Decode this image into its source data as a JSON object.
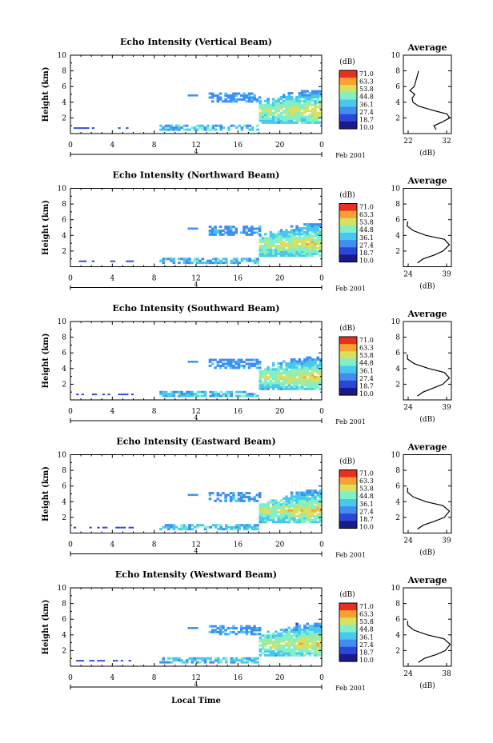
{
  "figure": {
    "xlabel": "Local Time",
    "date_label": "Feb 2001",
    "day_label": "4",
    "colorbar_unit": "(dB)",
    "colorbar_ticks": [
      "71.0",
      "63.3",
      "53.8",
      "44.8",
      "36.1",
      "27.4",
      "18.7",
      "10.0"
    ],
    "colormap": [
      "#1a1a8c",
      "#2c46d8",
      "#3f8ef0",
      "#48c8ee",
      "#7ff0c8",
      "#d8e060",
      "#f8a030",
      "#e83020"
    ],
    "empty_color": "#ffffff"
  },
  "chart_data": [
    {
      "type": "heatmap",
      "title": "Echo Intensity (Vertical Beam)",
      "xlabel": "",
      "ylabel": "Height (km)",
      "xlim": [
        0,
        24
      ],
      "ylim": [
        0,
        10
      ],
      "xticks": [
        "0",
        "4",
        "8",
        "12",
        "16",
        "20",
        "0"
      ],
      "yticks": [
        "2",
        "4",
        "6",
        "8",
        "10"
      ],
      "clim": [
        10.0,
        71.0
      ],
      "profile": {
        "title": "Average",
        "xlabel": "(dB)",
        "xlim": [
          22,
          33
        ],
        "xticks": [
          "22",
          "32"
        ],
        "ylim": [
          0,
          10
        ],
        "yticks": [
          "2",
          "4",
          "6",
          "8",
          "10"
        ],
        "x": [
          29.5,
          29.0,
          31.0,
          32.6,
          32.0,
          28.5,
          25.5,
          24.2,
          24.0,
          24.6,
          23.5,
          24.5,
          25.5
        ],
        "y": [
          0.5,
          1.0,
          1.5,
          2.0,
          2.5,
          3.0,
          3.5,
          4.0,
          4.5,
          5.0,
          5.5,
          6.0,
          8.0
        ]
      }
    },
    {
      "type": "heatmap",
      "title": "Echo Intensity (Northward Beam)",
      "xlabel": "",
      "ylabel": "Height (km)",
      "xlim": [
        0,
        24
      ],
      "ylim": [
        0,
        10
      ],
      "xticks": [
        "0",
        "4",
        "8",
        "12",
        "16",
        "20",
        "0"
      ],
      "yticks": [
        "2",
        "4",
        "6",
        "8",
        "10"
      ],
      "clim": [
        10.0,
        71.0
      ],
      "profile": {
        "title": "Average",
        "xlabel": "(dB)",
        "xlim": [
          23,
          40
        ],
        "xticks": [
          "24",
          "39"
        ],
        "ylim": [
          0,
          10
        ],
        "yticks": [
          "2",
          "4",
          "6",
          "8",
          "10"
        ],
        "x": [
          28.0,
          30.0,
          34.0,
          37.0,
          39.3,
          37.5,
          31.0,
          26.5,
          24.3,
          24.6
        ],
        "y": [
          0.5,
          1.0,
          1.5,
          2.0,
          2.8,
          3.5,
          4.0,
          4.6,
          5.2,
          5.8
        ]
      }
    },
    {
      "type": "heatmap",
      "title": "Echo Intensity (Southward Beam)",
      "xlabel": "",
      "ylabel": "Height (km)",
      "xlim": [
        0,
        24
      ],
      "ylim": [
        0,
        10
      ],
      "xticks": [
        "0",
        "4",
        "8",
        "12",
        "16",
        "20",
        "0"
      ],
      "yticks": [
        "2",
        "4",
        "6",
        "8",
        "10"
      ],
      "clim": [
        10.0,
        71.0
      ],
      "profile": {
        "title": "Average",
        "xlabel": "(dB)",
        "xlim": [
          23,
          40
        ],
        "xticks": [
          "24",
          "39"
        ],
        "ylim": [
          0,
          10
        ],
        "yticks": [
          "2",
          "4",
          "6",
          "8",
          "10"
        ],
        "x": [
          28.0,
          30.0,
          33.5,
          37.0,
          39.3,
          37.5,
          32.0,
          27.0,
          24.5,
          24.4
        ],
        "y": [
          0.5,
          1.0,
          1.5,
          2.0,
          2.8,
          3.5,
          4.0,
          4.6,
          5.2,
          5.8
        ]
      }
    },
    {
      "type": "heatmap",
      "title": "Echo Intensity (Eastward Beam)",
      "xlabel": "",
      "ylabel": "Height (km)",
      "xlim": [
        0,
        24
      ],
      "ylim": [
        0,
        10
      ],
      "xticks": [
        "0",
        "4",
        "8",
        "12",
        "16",
        "20",
        "0"
      ],
      "yticks": [
        "2",
        "4",
        "6",
        "8",
        "10"
      ],
      "clim": [
        10.0,
        71.0
      ],
      "profile": {
        "title": "Average",
        "xlabel": "(dB)",
        "xlim": [
          23,
          40
        ],
        "xticks": [
          "24",
          "39"
        ],
        "ylim": [
          0,
          10
        ],
        "yticks": [
          "2",
          "4",
          "6",
          "8",
          "10"
        ],
        "x": [
          28.0,
          30.0,
          34.0,
          37.5,
          39.3,
          37.0,
          31.0,
          26.5,
          24.5,
          24.5
        ],
        "y": [
          0.5,
          1.0,
          1.5,
          2.0,
          2.8,
          3.5,
          4.0,
          4.6,
          5.2,
          5.8
        ]
      }
    },
    {
      "type": "heatmap",
      "title": "Echo Intensity (Westward Beam)",
      "xlabel": "Local Time",
      "ylabel": "Height (km)",
      "xlim": [
        0,
        24
      ],
      "ylim": [
        0,
        10
      ],
      "xticks": [
        "0",
        "4",
        "8",
        "12",
        "16",
        "20",
        "0"
      ],
      "yticks": [
        "2",
        "4",
        "6",
        "8",
        "10"
      ],
      "clim": [
        10.0,
        71.0
      ],
      "profile": {
        "title": "Average",
        "xlabel": "(dB)",
        "xlim": [
          23,
          39
        ],
        "xticks": [
          "24",
          "38"
        ],
        "ylim": [
          0,
          10
        ],
        "yticks": [
          "2",
          "4",
          "6",
          "8",
          "10"
        ],
        "x": [
          28.0,
          30.0,
          34.0,
          37.0,
          38.6,
          36.5,
          31.0,
          26.5,
          24.5,
          24.4
        ],
        "y": [
          0.5,
          1.0,
          1.5,
          2.0,
          2.8,
          3.5,
          4.0,
          4.6,
          5.2,
          5.8
        ]
      }
    }
  ]
}
